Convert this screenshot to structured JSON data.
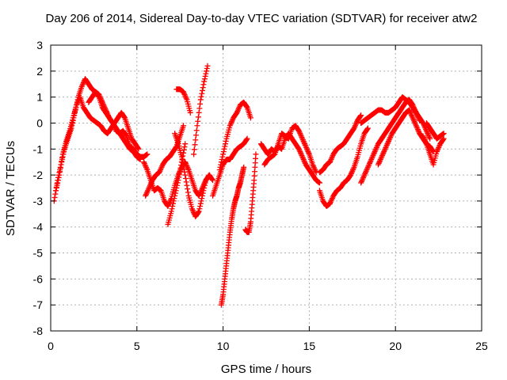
{
  "chart_data": {
    "type": "scatter",
    "title": "Day 206 of 2014, Sidereal Day-to-day VTEC variation (SDTVAR) for receiver atw2",
    "xlabel": "GPS time / hours",
    "ylabel": "SDTVAR / TECUs",
    "xlim": [
      0,
      25
    ],
    "ylim": [
      -8,
      3
    ],
    "xticks": [
      "0",
      "5",
      "10",
      "15",
      "20",
      "25"
    ],
    "yticks": [
      "-8",
      "-7",
      "-6",
      "-5",
      "-4",
      "-3",
      "-2",
      "-1",
      "0",
      "1",
      "2",
      "3"
    ],
    "grid": true,
    "marker": "plus",
    "color": "#ff0000",
    "series": [
      {
        "x": [
          0.2,
          0.4,
          0.6,
          0.8,
          1.0,
          1.2,
          1.4,
          1.6,
          1.8,
          2.0,
          2.2,
          2.4,
          2.6,
          2.8,
          3.0,
          3.2,
          3.4,
          3.6,
          3.8,
          4.0,
          4.2,
          4.4,
          4.6,
          4.8,
          5.0,
          5.2,
          5.4,
          5.6
        ],
        "y": [
          -3.0,
          -2.2,
          -1.6,
          -1.0,
          -0.6,
          -0.2,
          0.4,
          1.0,
          1.4,
          1.7,
          1.5,
          1.3,
          1.2,
          1.0,
          0.6,
          0.4,
          0.2,
          0.0,
          -0.2,
          -0.4,
          -0.3,
          -0.5,
          -0.9,
          -1.0,
          -1.2,
          -1.3,
          -1.3,
          -1.2
        ]
      },
      {
        "x": [
          0.3,
          0.5,
          0.7,
          0.9,
          1.1,
          1.3,
          1.5,
          1.7,
          1.9,
          2.1,
          2.3,
          2.5,
          2.7,
          2.9,
          3.1,
          3.3,
          3.5,
          3.7,
          3.9,
          4.1,
          4.3,
          4.5,
          4.7,
          4.9,
          5.1
        ],
        "y": [
          -2.6,
          -2.0,
          -1.2,
          -0.7,
          -0.3,
          0.2,
          0.7,
          1.0,
          0.6,
          0.4,
          0.2,
          0.1,
          0.0,
          -0.1,
          -0.3,
          -0.4,
          -0.2,
          0.0,
          0.2,
          0.4,
          0.2,
          -0.2,
          -0.6,
          -0.8,
          -1.0
        ]
      },
      {
        "x": [
          2.2,
          2.4,
          2.6,
          2.8,
          3.0,
          3.2,
          3.4,
          3.6,
          3.8,
          4.0,
          4.2,
          4.4,
          4.6,
          4.8,
          5.0,
          5.2
        ],
        "y": [
          0.8,
          1.0,
          1.2,
          1.1,
          0.8,
          0.5,
          0.2,
          0.0,
          -0.3,
          -0.4,
          -0.6,
          -0.8,
          -1.0,
          -1.1,
          -1.3,
          -1.4
        ]
      },
      {
        "x": [
          5.4,
          5.6,
          5.8,
          6.0,
          6.2,
          6.4,
          6.6,
          6.8,
          7.0,
          7.2,
          7.4,
          7.6,
          7.8,
          8.0,
          8.2,
          8.4,
          8.6,
          8.8,
          9.0,
          9.2
        ],
        "y": [
          -1.5,
          -1.8,
          -2.2,
          -2.6,
          -2.5,
          -2.6,
          -3.0,
          -3.2,
          -2.9,
          -2.4,
          -2.0,
          -1.7,
          -1.5,
          -1.8,
          -2.2,
          -2.6,
          -2.8,
          -2.5,
          -2.2,
          -2.0
        ]
      },
      {
        "x": [
          5.5,
          5.7,
          5.9,
          6.1,
          6.3,
          6.5,
          6.7,
          6.9,
          7.1,
          7.3,
          7.5,
          7.7
        ],
        "y": [
          -2.8,
          -2.5,
          -2.2,
          -2.0,
          -1.9,
          -1.6,
          -1.4,
          -1.3,
          -1.1,
          -0.9,
          -0.5,
          -0.1
        ]
      },
      {
        "x": [
          6.8,
          7.0,
          7.2,
          7.4,
          7.6,
          7.8
        ],
        "y": [
          -3.9,
          -3.4,
          -2.8,
          -2.2,
          -1.5,
          -0.8
        ]
      },
      {
        "x": [
          7.2,
          7.4,
          7.6,
          7.8,
          8.0,
          8.2,
          8.4,
          8.6,
          8.8,
          9.0,
          9.2,
          9.4
        ],
        "y": [
          -0.4,
          -0.8,
          -1.3,
          -2.0,
          -2.8,
          -3.3,
          -3.6,
          -3.4,
          -2.8,
          -2.2,
          -2.0,
          -2.2
        ]
      },
      {
        "x": [
          7.3,
          7.5,
          7.7,
          7.9,
          8.1
        ],
        "y": [
          1.3,
          1.3,
          1.2,
          0.9,
          0.4
        ]
      },
      {
        "x": [
          8.3,
          8.5,
          8.7,
          8.9,
          9.1
        ],
        "y": [
          -1.2,
          -0.1,
          0.9,
          1.6,
          2.2
        ]
      },
      {
        "x": [
          9.4,
          9.6,
          9.8,
          10.0,
          10.2,
          10.4,
          10.6,
          10.8,
          11.0,
          11.2,
          11.4
        ],
        "y": [
          -2.8,
          -2.4,
          -2.0,
          -1.6,
          -1.4,
          -1.4,
          -1.2,
          -1.0,
          -0.9,
          -0.8,
          -0.6
        ]
      },
      {
        "x": [
          9.8,
          10.0,
          10.2,
          10.4,
          10.6,
          10.8,
          11.0,
          11.2,
          11.4,
          11.6
        ],
        "y": [
          -1.8,
          -1.2,
          -0.6,
          -0.1,
          0.2,
          0.4,
          0.7,
          0.8,
          0.6,
          0.2
        ]
      },
      {
        "x": [
          9.9,
          10.0,
          10.1,
          10.2,
          10.3,
          10.4,
          10.5,
          10.6,
          10.7,
          10.8,
          10.9,
          11.0,
          11.1,
          11.2
        ],
        "y": [
          -7.0,
          -6.6,
          -6.0,
          -5.4,
          -4.8,
          -4.2,
          -3.7,
          -3.3,
          -3.0,
          -2.8,
          -2.5,
          -2.3,
          -2.0,
          -1.7
        ]
      },
      {
        "x": [
          11.3,
          11.4,
          11.5,
          11.6,
          11.7,
          11.8,
          11.9
        ],
        "y": [
          -4.1,
          -4.2,
          -4.2,
          -3.8,
          -3.0,
          -2.2,
          -1.2
        ]
      },
      {
        "x": [
          12.2,
          12.4,
          12.6,
          12.8,
          13.0,
          13.2,
          13.4,
          13.6,
          13.8,
          14.0,
          14.2,
          14.4,
          14.6,
          14.8,
          15.0,
          15.2,
          15.4,
          15.6
        ],
        "y": [
          -0.8,
          -1.0,
          -1.2,
          -1.0,
          -1.1,
          -0.9,
          -1.0,
          -0.6,
          -0.4,
          -0.6,
          -0.8,
          -1.0,
          -1.3,
          -1.6,
          -1.8,
          -2.0,
          -2.2,
          -2.3
        ]
      },
      {
        "x": [
          12.4,
          12.6,
          12.8,
          13.0,
          13.2,
          13.4,
          13.6,
          13.8,
          14.0,
          14.2,
          14.4,
          14.6,
          14.8,
          15.0,
          15.2,
          15.4
        ],
        "y": [
          -1.6,
          -1.4,
          -1.3,
          -1.2,
          -0.8,
          -0.4,
          -0.5,
          -0.6,
          -0.2,
          -0.1,
          -0.3,
          -0.6,
          -0.9,
          -1.2,
          -1.6,
          -1.9
        ]
      },
      {
        "x": [
          15.6,
          15.8,
          16.0,
          16.2,
          16.4,
          16.6,
          16.8,
          17.0,
          17.2,
          17.4,
          17.6,
          17.8,
          18.0,
          18.2,
          18.4
        ],
        "y": [
          -2.6,
          -3.0,
          -3.2,
          -3.1,
          -2.8,
          -2.6,
          -2.5,
          -2.3,
          -2.2,
          -2.0,
          -1.7,
          -1.3,
          -0.8,
          -0.4,
          -0.2
        ]
      },
      {
        "x": [
          15.6,
          15.8,
          16.0,
          16.2,
          16.4,
          16.6,
          16.8,
          17.0,
          17.2,
          17.4,
          17.6,
          17.8,
          18.0
        ],
        "y": [
          -1.9,
          -1.8,
          -1.6,
          -1.5,
          -1.2,
          -1.0,
          -0.9,
          -0.8,
          -0.6,
          -0.4,
          -0.2,
          0.1,
          0.3
        ]
      },
      {
        "x": [
          18.0,
          18.2,
          18.4,
          18.6,
          18.8,
          19.0,
          19.2,
          19.4,
          19.6,
          19.8,
          20.0,
          20.2,
          20.4,
          20.6,
          20.8,
          21.0,
          21.2,
          21.4
        ],
        "y": [
          -2.3,
          -2.0,
          -1.7,
          -1.4,
          -1.1,
          -0.8,
          -0.6,
          -0.4,
          -0.2,
          0.0,
          0.2,
          0.4,
          0.6,
          0.8,
          0.9,
          0.7,
          0.4,
          0.1
        ]
      },
      {
        "x": [
          18.0,
          18.2,
          18.4,
          18.6,
          18.8,
          19.0,
          19.2,
          19.4,
          19.6,
          19.8,
          20.0,
          20.2,
          20.4,
          20.6,
          20.8,
          21.0,
          21.2,
          21.4,
          21.6,
          21.8,
          22.0
        ],
        "y": [
          0.0,
          0.1,
          0.2,
          0.3,
          0.4,
          0.5,
          0.5,
          0.4,
          0.4,
          0.5,
          0.6,
          0.8,
          1.0,
          0.9,
          0.8,
          0.6,
          0.4,
          0.2,
          0.0,
          -0.3,
          -0.6
        ]
      },
      {
        "x": [
          19.0,
          19.2,
          19.4,
          19.6,
          19.8,
          20.0,
          20.2,
          20.4,
          20.6,
          20.8,
          21.0,
          21.2,
          21.4,
          21.6,
          21.8,
          22.0,
          22.2
        ],
        "y": [
          -1.6,
          -1.3,
          -1.0,
          -0.7,
          -0.4,
          -0.2,
          0.0,
          0.2,
          0.4,
          0.5,
          0.2,
          -0.1,
          -0.4,
          -0.6,
          -0.8,
          -0.9,
          -1.1
        ]
      },
      {
        "x": [
          21.6,
          21.8,
          22.0,
          22.2,
          22.4,
          22.6,
          22.8
        ],
        "y": [
          -0.5,
          -0.8,
          -1.2,
          -1.6,
          -1.1,
          -0.8,
          -0.6
        ]
      },
      {
        "x": [
          21.8,
          22.0,
          22.2,
          22.4,
          22.6,
          22.8
        ],
        "y": [
          0.0,
          -0.2,
          -0.4,
          -0.6,
          -0.5,
          -0.4
        ]
      }
    ]
  }
}
